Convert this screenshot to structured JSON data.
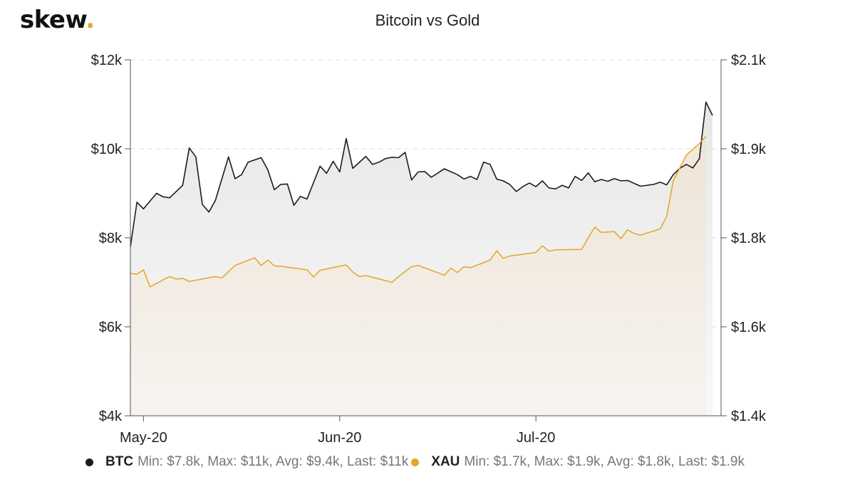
{
  "brand": {
    "logo_text": "skew",
    "logo_dot": "."
  },
  "chart_data": {
    "type": "line",
    "title": "Bitcoin vs Gold",
    "colors": {
      "btc": "#1c1c1c",
      "xau": "#e3a52a"
    },
    "y_left": {
      "ticks": [
        "$4k",
        "$6k",
        "$8k",
        "$10k",
        "$12k"
      ],
      "ylim": [
        4000,
        12000
      ]
    },
    "y_right": {
      "ticks": [
        "$1.4k",
        "$1.6k",
        "$1.8k",
        "$1.9k",
        "$2.1k"
      ]
    },
    "x_ticks": [
      "May-20",
      "Jun-20",
      "Jul-20"
    ],
    "x_tick_days": [
      2,
      32,
      62
    ],
    "x_range_days": [
      0,
      89
    ],
    "grid": "dashed horizontal",
    "legend_position": "bottom",
    "series": [
      {
        "name": "BTC",
        "legend_stats": "Min: $7.8k, Max: $11k, Avg: $9.4k, Last: $11k",
        "axis": "left",
        "points": [
          [
            0,
            7800
          ],
          [
            1,
            8800
          ],
          [
            2,
            8650
          ],
          [
            4,
            9000
          ],
          [
            5,
            8920
          ],
          [
            6,
            8900
          ],
          [
            8,
            9180
          ],
          [
            9,
            10020
          ],
          [
            10,
            9820
          ],
          [
            11,
            8750
          ],
          [
            12,
            8580
          ],
          [
            13,
            8840
          ],
          [
            15,
            9820
          ],
          [
            16,
            9330
          ],
          [
            17,
            9420
          ],
          [
            18,
            9700
          ],
          [
            20,
            9800
          ],
          [
            21,
            9530
          ],
          [
            22,
            9080
          ],
          [
            23,
            9200
          ],
          [
            24,
            9210
          ],
          [
            25,
            8730
          ],
          [
            26,
            8930
          ],
          [
            27,
            8870
          ],
          [
            29,
            9610
          ],
          [
            30,
            9450
          ],
          [
            31,
            9720
          ],
          [
            32,
            9480
          ],
          [
            33,
            10230
          ],
          [
            34,
            9560
          ],
          [
            36,
            9830
          ],
          [
            37,
            9650
          ],
          [
            38,
            9700
          ],
          [
            39,
            9780
          ],
          [
            40,
            9810
          ],
          [
            41,
            9800
          ],
          [
            42,
            9920
          ],
          [
            43,
            9300
          ],
          [
            44,
            9480
          ],
          [
            45,
            9490
          ],
          [
            46,
            9360
          ],
          [
            48,
            9550
          ],
          [
            50,
            9420
          ],
          [
            51,
            9320
          ],
          [
            52,
            9380
          ],
          [
            53,
            9310
          ],
          [
            54,
            9700
          ],
          [
            55,
            9650
          ],
          [
            56,
            9320
          ],
          [
            57,
            9280
          ],
          [
            58,
            9200
          ],
          [
            59,
            9040
          ],
          [
            60,
            9150
          ],
          [
            61,
            9230
          ],
          [
            62,
            9150
          ],
          [
            63,
            9280
          ],
          [
            64,
            9120
          ],
          [
            65,
            9100
          ],
          [
            66,
            9180
          ],
          [
            67,
            9120
          ],
          [
            68,
            9380
          ],
          [
            69,
            9290
          ],
          [
            70,
            9460
          ],
          [
            71,
            9260
          ],
          [
            72,
            9310
          ],
          [
            73,
            9270
          ],
          [
            74,
            9330
          ],
          [
            75,
            9280
          ],
          [
            76,
            9290
          ],
          [
            78,
            9160
          ],
          [
            80,
            9200
          ],
          [
            81,
            9250
          ],
          [
            82,
            9190
          ],
          [
            83,
            9420
          ],
          [
            84,
            9560
          ],
          [
            85,
            9650
          ],
          [
            86,
            9570
          ],
          [
            87,
            9780
          ],
          [
            88,
            11050
          ],
          [
            89,
            10750
          ]
        ]
      },
      {
        "name": "XAU",
        "legend_stats": "Min: $1.7k, Max: $1.9k, Avg: $1.8k, Last: $1.9k",
        "axis": "right",
        "points": [
          [
            0,
            1720
          ],
          [
            1,
            1718
          ],
          [
            2,
            1728
          ],
          [
            3,
            1690
          ],
          [
            6,
            1713
          ],
          [
            7,
            1707
          ],
          [
            8,
            1709
          ],
          [
            9,
            1702
          ],
          [
            13,
            1713
          ],
          [
            14,
            1710
          ],
          [
            16,
            1738
          ],
          [
            19,
            1755
          ],
          [
            20,
            1738
          ],
          [
            21,
            1750
          ],
          [
            22,
            1737
          ],
          [
            23,
            1736
          ],
          [
            27,
            1728
          ],
          [
            28,
            1712
          ],
          [
            29,
            1727
          ],
          [
            33,
            1739
          ],
          [
            34,
            1723
          ],
          [
            35,
            1713
          ],
          [
            36,
            1715
          ],
          [
            40,
            1700
          ],
          [
            41,
            1713
          ],
          [
            43,
            1735
          ],
          [
            44,
            1738
          ],
          [
            48,
            1716
          ],
          [
            49,
            1732
          ],
          [
            50,
            1722
          ],
          [
            51,
            1735
          ],
          [
            52,
            1733
          ],
          [
            54,
            1744
          ],
          [
            55,
            1750
          ],
          [
            56,
            1771
          ],
          [
            57,
            1754
          ],
          [
            58,
            1759
          ],
          [
            62,
            1767
          ],
          [
            63,
            1782
          ],
          [
            64,
            1770
          ],
          [
            65,
            1773
          ],
          [
            69,
            1774
          ],
          [
            70,
            1800
          ],
          [
            71,
            1812
          ],
          [
            72,
            1806
          ],
          [
            74,
            1807
          ],
          [
            75,
            1798
          ],
          [
            76,
            1809
          ],
          [
            77,
            1805
          ],
          [
            78,
            1803
          ],
          [
            81,
            1810
          ],
          [
            82,
            1824
          ],
          [
            83,
            1864
          ],
          [
            85,
            1893
          ],
          [
            87,
            1912
          ],
          [
            88,
            1928
          ]
        ]
      }
    ]
  }
}
